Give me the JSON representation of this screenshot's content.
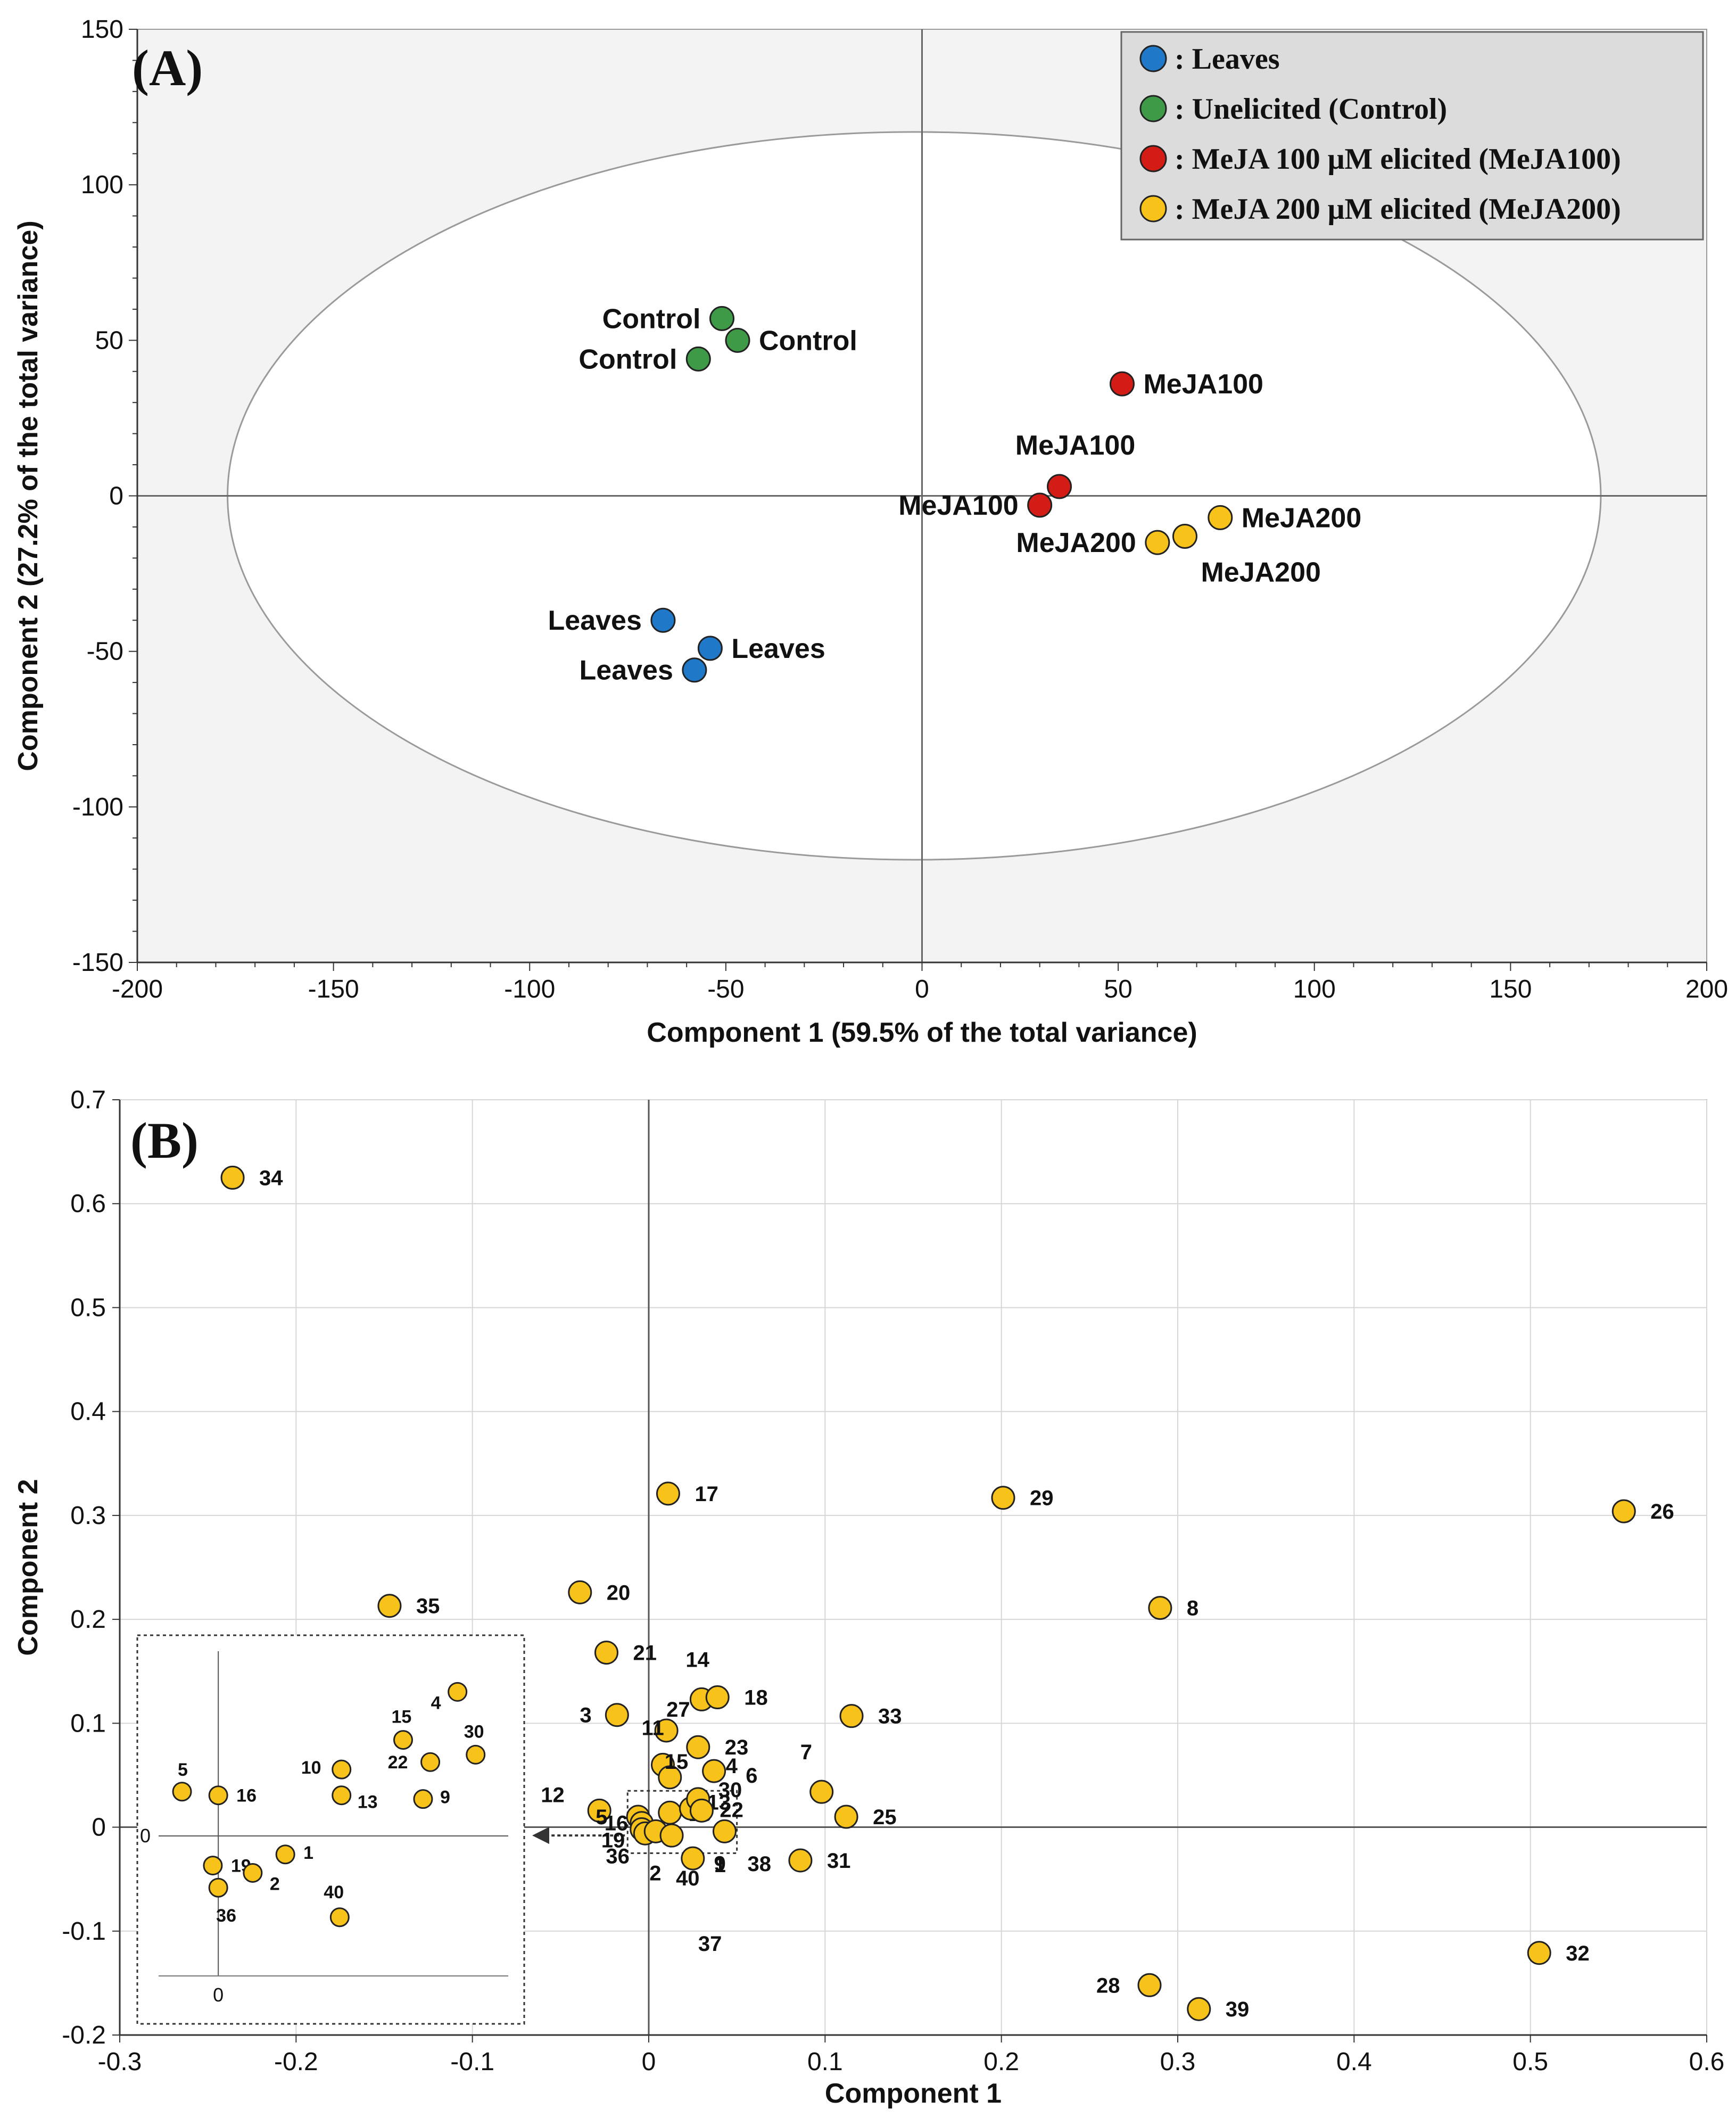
{
  "colors": {
    "leaves": "#1f78c8",
    "control": "#3e9a47",
    "meja100": "#d41c16",
    "meja200": "#f7c31b",
    "outline": "#222222",
    "plot_bg_a": "#f3f3f3",
    "legend_bg": "#dcdcdc"
  },
  "chart_data": [
    {
      "panel": "(A)",
      "type": "scatter",
      "xlabel": "Component 1 (59.5% of the total variance)",
      "ylabel": "Component 2 (27.2% of the total variance)",
      "xlim": [
        -200,
        200
      ],
      "ylim": [
        -150,
        150
      ],
      "xticks": [
        -200,
        -150,
        -100,
        -50,
        0,
        50,
        100,
        150,
        200
      ],
      "yticks": [
        -150,
        -100,
        -50,
        0,
        50,
        100,
        150
      ],
      "ellipse": {
        "cx": -2,
        "cy": 0,
        "rx": 175,
        "ry": 117
      },
      "legend": {
        "position": "top-right",
        "entries": [
          {
            "key": "leaves",
            "label": ": Leaves"
          },
          {
            "key": "control",
            "label": ": Unelicited (Control)"
          },
          {
            "key": "meja100",
            "label": ": MeJA 100 μM elicited (MeJA100)"
          },
          {
            "key": "meja200",
            "label": ": MeJA 200 μM elicited (MeJA200)"
          }
        ]
      },
      "series": [
        {
          "name": "Leaves",
          "key": "leaves",
          "points": [
            {
              "x": -66,
              "y": -40,
              "label": "Leaves",
              "pos": "left"
            },
            {
              "x": -54,
              "y": -49,
              "label": "Leaves",
              "pos": "right"
            },
            {
              "x": -58,
              "y": -56,
              "label": "Leaves",
              "pos": "left"
            }
          ]
        },
        {
          "name": "Control",
          "key": "control",
          "points": [
            {
              "x": -51,
              "y": 57,
              "label": "Control",
              "pos": "left"
            },
            {
              "x": -47,
              "y": 50,
              "label": "Control",
              "pos": "right"
            },
            {
              "x": -57,
              "y": 44,
              "label": "Control",
              "pos": "left"
            }
          ]
        },
        {
          "name": "MeJA100",
          "key": "meja100",
          "points": [
            {
              "x": 51,
              "y": 36,
              "label": "MeJA100",
              "pos": "right"
            },
            {
              "x": 35,
              "y": 3,
              "label": "MeJA100",
              "pos": "above"
            },
            {
              "x": 30,
              "y": -3,
              "label": "MeJA100",
              "pos": "left"
            }
          ]
        },
        {
          "name": "MeJA200",
          "key": "meja200",
          "points": [
            {
              "x": 76,
              "y": -7,
              "label": "MeJA200",
              "pos": "right"
            },
            {
              "x": 67,
              "y": -13,
              "label": "MeJA200",
              "pos": "below"
            },
            {
              "x": 60,
              "y": -15,
              "label": "MeJA200",
              "pos": "left"
            }
          ]
        }
      ]
    },
    {
      "panel": "(B)",
      "type": "scatter",
      "xlabel": "Component 1",
      "ylabel": "Component 2",
      "xlim": [
        -0.3,
        0.6
      ],
      "ylim": [
        -0.2,
        0.7
      ],
      "xticks": [
        -0.3,
        -0.2,
        -0.1,
        0,
        0.1,
        0.2,
        0.3,
        0.4,
        0.5,
        0.6
      ],
      "yticks": [
        -0.2,
        -0.1,
        0,
        0.1,
        0.2,
        0.3,
        0.4,
        0.5,
        0.6,
        0.7
      ],
      "points": [
        {
          "x": -0.236,
          "y": 0.625,
          "label": "34"
        },
        {
          "x": 0.011,
          "y": 0.321,
          "label": "17"
        },
        {
          "x": 0.201,
          "y": 0.317,
          "label": "29"
        },
        {
          "x": 0.553,
          "y": 0.304,
          "label": "26"
        },
        {
          "x": -0.147,
          "y": 0.213,
          "label": "35"
        },
        {
          "x": -0.039,
          "y": 0.226,
          "label": "20"
        },
        {
          "x": 0.29,
          "y": 0.211,
          "label": "8"
        },
        {
          "x": -0.024,
          "y": 0.168,
          "label": "21"
        },
        {
          "x": 0.03,
          "y": 0.123,
          "label": "14"
        },
        {
          "x": 0.039,
          "y": 0.125,
          "label": "18"
        },
        {
          "x": 0.115,
          "y": 0.107,
          "label": "33"
        },
        {
          "x": -0.018,
          "y": 0.108,
          "label": "3"
        },
        {
          "x": 0.01,
          "y": 0.093,
          "label": "27"
        },
        {
          "x": 0.028,
          "y": 0.077,
          "label": "23"
        },
        {
          "x": 0.037,
          "y": 0.054,
          "label": "4"
        },
        {
          "x": 0.008,
          "y": 0.06,
          "label": "11"
        },
        {
          "x": 0.012,
          "y": 0.048,
          "label": "15"
        },
        {
          "x": 0.098,
          "y": 0.034,
          "label": "7"
        },
        {
          "x": 0.112,
          "y": 0.01,
          "label": "25"
        },
        {
          "x": -0.028,
          "y": 0.016,
          "label": "12"
        },
        {
          "x": -0.006,
          "y": 0.01,
          "label": "5"
        },
        {
          "x": -0.004,
          "y": 0.004,
          "label": "16"
        },
        {
          "x": 0.012,
          "y": 0.014,
          "label": "10"
        },
        {
          "x": 0.024,
          "y": 0.018,
          "label": "13"
        },
        {
          "x": 0.028,
          "y": 0.027,
          "label": "30"
        },
        {
          "x": 0.03,
          "y": 0.016,
          "label": "22"
        },
        {
          "x": -0.004,
          "y": -0.002,
          "label": "19"
        },
        {
          "x": -0.002,
          "y": -0.006,
          "label": "36"
        },
        {
          "x": 0.004,
          "y": -0.004,
          "label": "2"
        },
        {
          "x": 0.013,
          "y": -0.008,
          "label": "40"
        },
        {
          "x": 0.025,
          "y": -0.03,
          "label": "37"
        },
        {
          "x": 0.043,
          "y": -0.004,
          "label": "9"
        },
        {
          "x": 0.086,
          "y": -0.032,
          "label": "31"
        },
        {
          "x": 0.284,
          "y": -0.152,
          "label": "28"
        },
        {
          "x": 0.312,
          "y": -0.175,
          "label": "39"
        },
        {
          "x": 0.505,
          "y": -0.121,
          "label": "32"
        }
      ],
      "plain_labels": [
        "6",
        "38",
        "1"
      ],
      "inset": {
        "zero_x": "0",
        "zero_y": "0",
        "points": [
          {
            "x": -0.02,
            "y": 0.012,
            "label": "5"
          },
          {
            "x": 0.0,
            "y": 0.011,
            "label": "16"
          },
          {
            "x": -0.003,
            "y": -0.008,
            "label": "19"
          },
          {
            "x": 0.0,
            "y": -0.014,
            "label": "36"
          },
          {
            "x": 0.019,
            "y": -0.01,
            "label": "2"
          },
          {
            "x": 0.037,
            "y": -0.005,
            "label": "1"
          },
          {
            "x": 0.067,
            "y": -0.022,
            "label": "40"
          },
          {
            "x": 0.068,
            "y": 0.018,
            "label": "10"
          },
          {
            "x": 0.068,
            "y": 0.011,
            "label": "13"
          },
          {
            "x": 0.102,
            "y": 0.026,
            "label": "15"
          },
          {
            "x": 0.132,
            "y": 0.039,
            "label": "4"
          },
          {
            "x": 0.117,
            "y": 0.02,
            "label": "22"
          },
          {
            "x": 0.113,
            "y": 0.01,
            "label": "9"
          },
          {
            "x": 0.142,
            "y": 0.022,
            "label": "30"
          }
        ]
      }
    }
  ]
}
